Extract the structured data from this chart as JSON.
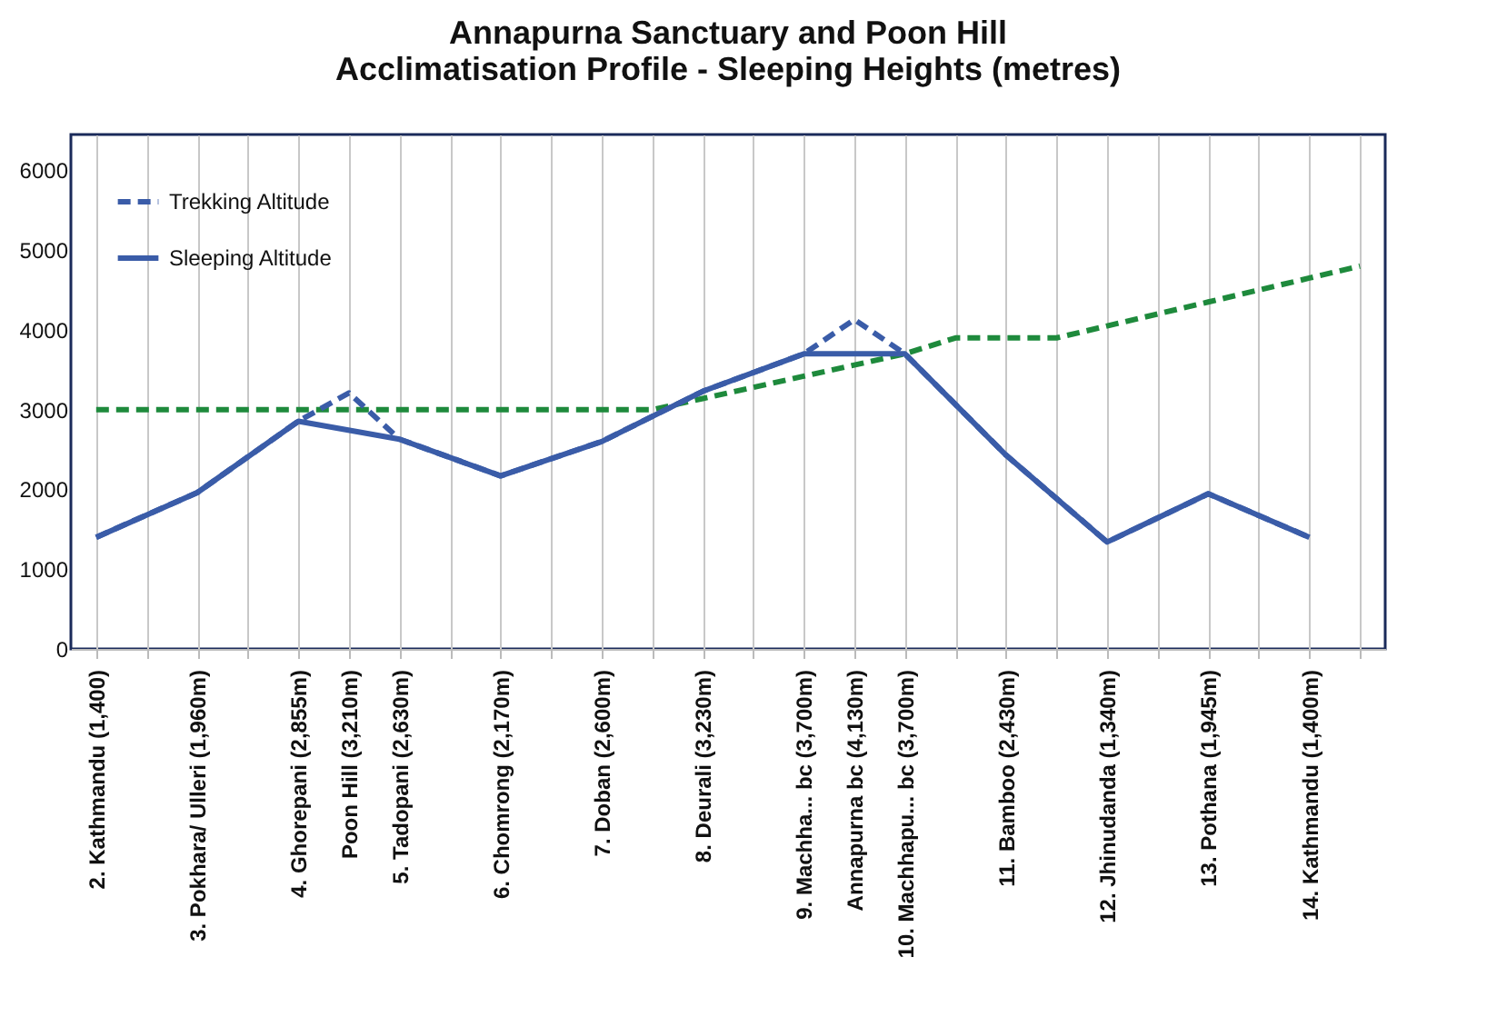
{
  "chart_data": {
    "type": "line",
    "title": "Annapurna Sanctuary and Poon Hill\nAcclimatisation Profile - Sleeping Heights (metres)",
    "categories": [
      "2. Kathmandu (1,400)",
      null,
      "3. Pokhara/ Ulleri (1,960m)",
      null,
      "4. Ghorepani (2,855m)",
      "Poon Hill (3,210m)",
      "5. Tadopani (2,630m)",
      null,
      "6. Chomrong (2,170m)",
      null,
      "7. Doban (2,600m)",
      null,
      "8. Deurali (3,230m)",
      null,
      "9. Machha... bc (3,700m)",
      "Annapurna bc (4,130m)",
      "10. Machhapu... bc (3,700m)",
      null,
      "11. Bamboo (2,430m)",
      null,
      "12. Jhinudanda (1,340m)",
      null,
      "13. Pothana (1,945m)",
      null,
      "14. Kathmandu (1,400m)",
      null
    ],
    "series": [
      {
        "color": "#1e8a3c",
        "line_style": "dashed",
        "values": [
          3000,
          3000,
          3000,
          3000,
          3000,
          3000,
          3000,
          3000,
          3000,
          3000,
          3000,
          3000,
          3140,
          3280,
          3420,
          3560,
          3700,
          3900,
          3900,
          3900,
          4050,
          4200,
          4350,
          4500,
          4650,
          4800
        ]
      },
      {
        "name": "Trekking Altitude",
        "color": "#3a5ca8",
        "line_style": "dashed",
        "values": [
          1400,
          null,
          1960,
          null,
          2855,
          3210,
          2630,
          null,
          2170,
          null,
          2600,
          null,
          3230,
          null,
          3700,
          4130,
          3700,
          null,
          2430,
          null,
          1340,
          null,
          1945,
          null,
          1400,
          null
        ]
      },
      {
        "name": "Sleeping Altitude",
        "color": "#3a5ca8",
        "line_style": "solid",
        "values": [
          1400,
          null,
          1960,
          null,
          2855,
          null,
          2630,
          null,
          2170,
          null,
          2600,
          null,
          3230,
          null,
          3700,
          null,
          3700,
          null,
          2430,
          null,
          1340,
          null,
          1945,
          null,
          1400,
          null
        ]
      }
    ],
    "ylim": [
      0,
      6450
    ],
    "yticks": [
      0,
      1000,
      2000,
      3000,
      4000,
      5000,
      6000
    ],
    "grid": "x",
    "legend": "top left"
  }
}
